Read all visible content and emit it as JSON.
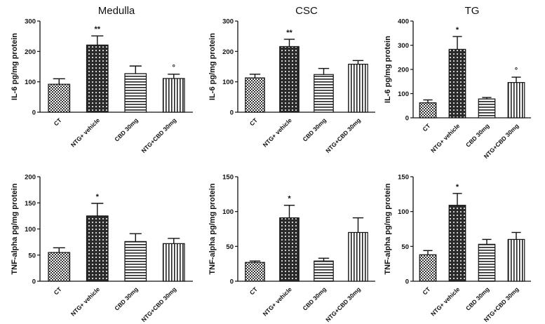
{
  "chart_data": [
    {
      "type": "bar",
      "title": "Medulla",
      "ylabel": "IL-6 pg/mg protein",
      "categories": [
        "CT",
        "NTG+ vehicle",
        "CBD 30mg",
        "NTG+CBD 30mg"
      ],
      "values": [
        92,
        221,
        127,
        111
      ],
      "errors": [
        18,
        30,
        25,
        14
      ],
      "annotations": [
        "",
        "**",
        "",
        "°"
      ],
      "ylim": [
        0,
        300
      ],
      "yticks": [
        0,
        100,
        200,
        300
      ]
    },
    {
      "type": "bar",
      "title": "CSC",
      "ylabel": "IL-6 pg/mg protein",
      "categories": [
        "CT",
        "NTG+ vehicle",
        "CBD 30mg",
        "NTG+CBD 30mg"
      ],
      "values": [
        113,
        216,
        124,
        158
      ],
      "errors": [
        12,
        24,
        20,
        12
      ],
      "annotations": [
        "",
        "**",
        "",
        ""
      ],
      "ylim": [
        0,
        300
      ],
      "yticks": [
        0,
        100,
        200,
        300
      ]
    },
    {
      "type": "bar",
      "title": "TG",
      "ylabel": "IL-6 pg/mg protein",
      "categories": [
        "CT",
        "NTG+ vehicle",
        "CBD 30mg",
        "NTG+CBD 30mg"
      ],
      "values": [
        62,
        283,
        78,
        146
      ],
      "errors": [
        12,
        53,
        6,
        22
      ],
      "annotations": [
        "",
        "*",
        "",
        "°"
      ],
      "ylim": [
        0,
        400
      ],
      "yticks": [
        0,
        100,
        200,
        300,
        400
      ]
    },
    {
      "type": "bar",
      "title": "",
      "ylabel": "TNF-alpha pg/mg protein",
      "categories": [
        "CT",
        "NTG+ vehicle",
        "CBD 30mg",
        "NTG+CBD 30mg"
      ],
      "values": [
        55,
        125,
        76,
        72
      ],
      "errors": [
        9,
        24,
        15,
        10
      ],
      "annotations": [
        "",
        "*",
        "",
        ""
      ],
      "ylim": [
        0,
        200
      ],
      "yticks": [
        0,
        50,
        100,
        150,
        200
      ]
    },
    {
      "type": "bar",
      "title": "",
      "ylabel": "TNF-alpha pg/mg protein",
      "categories": [
        "CT",
        "NTG+ vehicle",
        "CBD 30mg",
        "NTG+CBD 30mg"
      ],
      "values": [
        27,
        91,
        29,
        70
      ],
      "errors": [
        2,
        18,
        4,
        21
      ],
      "annotations": [
        "",
        "*",
        "",
        ""
      ],
      "ylim": [
        0,
        150
      ],
      "yticks": [
        0,
        50,
        100,
        150
      ]
    },
    {
      "type": "bar",
      "title": "",
      "ylabel": "TNF-alpha pg/mg protein",
      "categories": [
        "CT",
        "NTG+ vehicle",
        "CBD 30mg",
        "NTG+CBD 30mg"
      ],
      "values": [
        38,
        109,
        53,
        60
      ],
      "errors": [
        6,
        17,
        7,
        10
      ],
      "annotations": [
        "",
        "*",
        "",
        ""
      ],
      "ylim": [
        0,
        150
      ],
      "yticks": [
        0,
        50,
        100,
        150
      ]
    }
  ]
}
